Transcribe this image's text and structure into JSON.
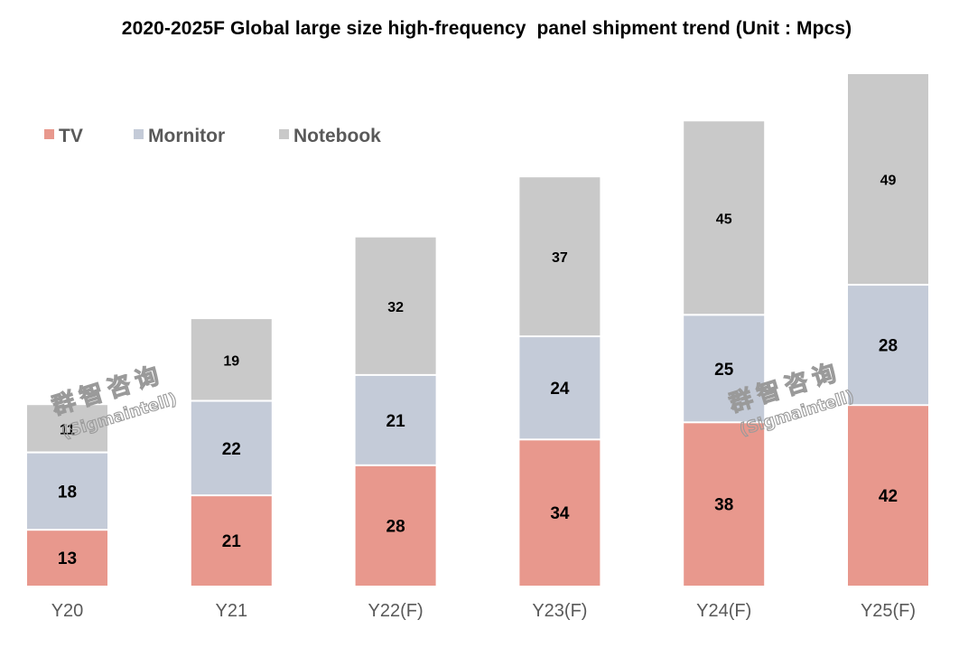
{
  "chart_data": {
    "type": "bar",
    "stacked": true,
    "title": "2020-2025F Global large size high-frequency  panel shipment trend (Unit : Mpcs)",
    "xlabel": "",
    "ylabel": "",
    "categories": [
      "Y20",
      "Y21",
      "Y22(F)",
      "Y23(F)",
      "Y24(F)",
      "Y25(F)"
    ],
    "series": [
      {
        "name": "TV",
        "color": "#E8988D",
        "values": [
          13,
          21,
          28,
          34,
          38,
          42
        ]
      },
      {
        "name": "Mornitor",
        "color": "#C4CBD8",
        "values": [
          18,
          22,
          21,
          24,
          25,
          28
        ]
      },
      {
        "name": "Notebook",
        "color": "#C9C9C9",
        "values": [
          11,
          19,
          32,
          37,
          45,
          49
        ]
      }
    ],
    "ylim": [
      0,
      119
    ],
    "grid": false,
    "legend_position": "top-left",
    "data_labels": true
  },
  "watermark": {
    "text_cn": "群智咨询",
    "text_en": "(Sigmaintell)"
  }
}
